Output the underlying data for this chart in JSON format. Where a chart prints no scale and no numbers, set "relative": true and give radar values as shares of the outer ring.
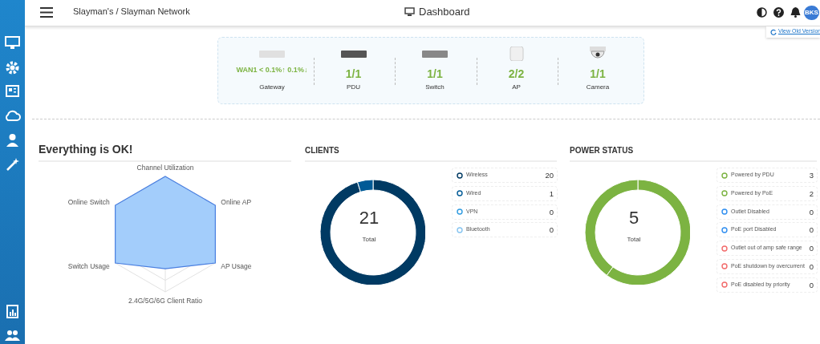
{
  "chart_data": [
    {
      "type": "other",
      "title": "Dashboard",
      "categories": [
        "Gateway",
        "PDU",
        "Switch",
        "AP",
        "Camera"
      ],
      "annotations": [
        "Slayman's / Slayman Network",
        "View Old Version",
        "BKS",
        "WAN1 < 0.1%↑ 0.1%↓",
        "1/1",
        "1/1",
        "2/2",
        "1/1"
      ]
    },
    {
      "type": "radar",
      "title": "Everything is OK!",
      "categories": [
        "Channel Utilization",
        "Online AP",
        "AP Usage",
        "2.4G/5G/6G Client Ratio",
        "Switch Usage",
        "Online Switch"
      ],
      "relative": true,
      "grid": true,
      "series": [
        {
          "color": "#4a7fe0",
          "values": [
            1,
            1,
            1,
            0.6,
            1,
            1
          ]
        }
      ]
    },
    {
      "type": "donut",
      "title": "CLIENTS",
      "categories": [
        "Wireless",
        "Wired",
        "VPN",
        "Bluetooth"
      ],
      "values": [
        20,
        1,
        0,
        0
      ],
      "value_labels": [
        "20",
        "1",
        "0",
        "0"
      ],
      "colors": [
        "#003a63",
        "#005a96",
        "#2f9be0",
        "#86c4f0"
      ],
      "legend": "right",
      "annotations": [
        "21",
        "Total"
      ]
    },
    {
      "type": "donut",
      "title": "POWER STATUS",
      "categories": [
        "Powered by PDU",
        "Powered by PoE",
        "Outlet Disabled",
        "PoE port Disabled",
        "Outlet out of amp safe range",
        "PoE shutdown by overcurrent",
        "PoE disabled by priority"
      ],
      "values": [
        3,
        2,
        0,
        0,
        0,
        0,
        0
      ],
      "value_labels": [
        "3",
        "2",
        "0",
        "0",
        "0",
        "0",
        "0"
      ],
      "colors": [
        "#7cb342",
        "#7cb342",
        "#2f8ef0",
        "#2f8ef0",
        "#f26b6b",
        "#f26b6b",
        "#f26b6b"
      ],
      "legend": "right",
      "annotations": [
        "5",
        "Total"
      ]
    }
  ]
}
